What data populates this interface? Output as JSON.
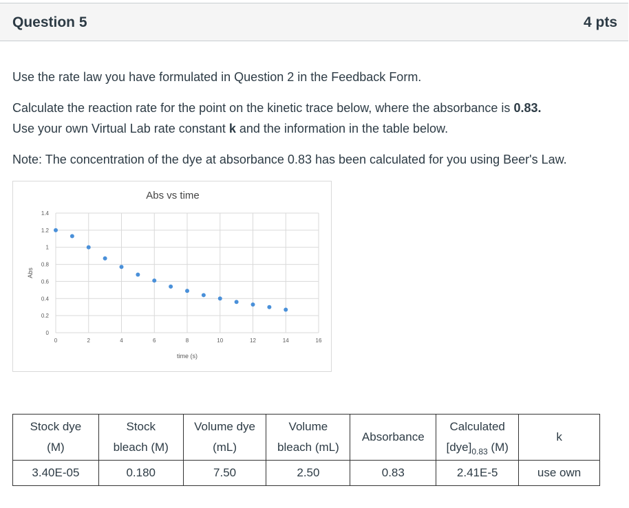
{
  "question": {
    "title": "Question 5",
    "points": "4 pts"
  },
  "body": {
    "p1": "Use the rate law you have formulated in Question 2 in the Feedback Form.",
    "p2_pre": "Calculate the reaction rate for the point on the kinetic trace below, where the absorbance is ",
    "p2_bold": "0.83.",
    "p2b_pre": "Use your own Virtual Lab rate constant ",
    "p2b_bold": "k",
    "p2b_post": " and the information in the table below.",
    "p3": "Note: The concentration of the dye at absorbance 0.83 has been calculated for you using Beer's Law."
  },
  "chart_data": {
    "type": "scatter",
    "title": "Abs vs time",
    "xlabel": "time (s)",
    "ylabel": "Abs",
    "xlim": [
      0,
      16
    ],
    "ylim": [
      0,
      1.4
    ],
    "xticks": [
      "0",
      "2",
      "4",
      "6",
      "8",
      "10",
      "12",
      "14",
      "16"
    ],
    "yticks": [
      "0",
      "0.2",
      "0.4",
      "0.6",
      "0.8",
      "1",
      "1.2",
      "1.4"
    ],
    "grid": true,
    "color": "#4a90d9",
    "x": [
      0,
      1,
      2,
      3,
      4,
      5,
      6,
      7,
      8,
      9,
      10,
      11,
      12,
      13,
      14
    ],
    "y": [
      1.2,
      1.13,
      1.0,
      0.87,
      0.77,
      0.68,
      0.61,
      0.54,
      0.49,
      0.44,
      0.4,
      0.36,
      0.33,
      0.3,
      0.27
    ]
  },
  "table": {
    "headers": [
      {
        "line1": "Stock dye",
        "line2": "(M)"
      },
      {
        "line1": "Stock",
        "line2": "bleach  (M)"
      },
      {
        "line1": "Volume dye",
        "line2": "(mL)"
      },
      {
        "line1": "Volume",
        "line2": "bleach (mL)"
      },
      {
        "line1": "Absorbance",
        "line2": ""
      },
      {
        "line1": "Calculated",
        "line2_pre": "[dye]",
        "line2_sub": "0.83",
        "line2_post": " (M)"
      },
      {
        "line1": "k",
        "line2": ""
      }
    ],
    "row": [
      "3.40E-05",
      "0.180",
      "7.50",
      "2.50",
      "0.83",
      "2.41E-5",
      "use own"
    ]
  }
}
